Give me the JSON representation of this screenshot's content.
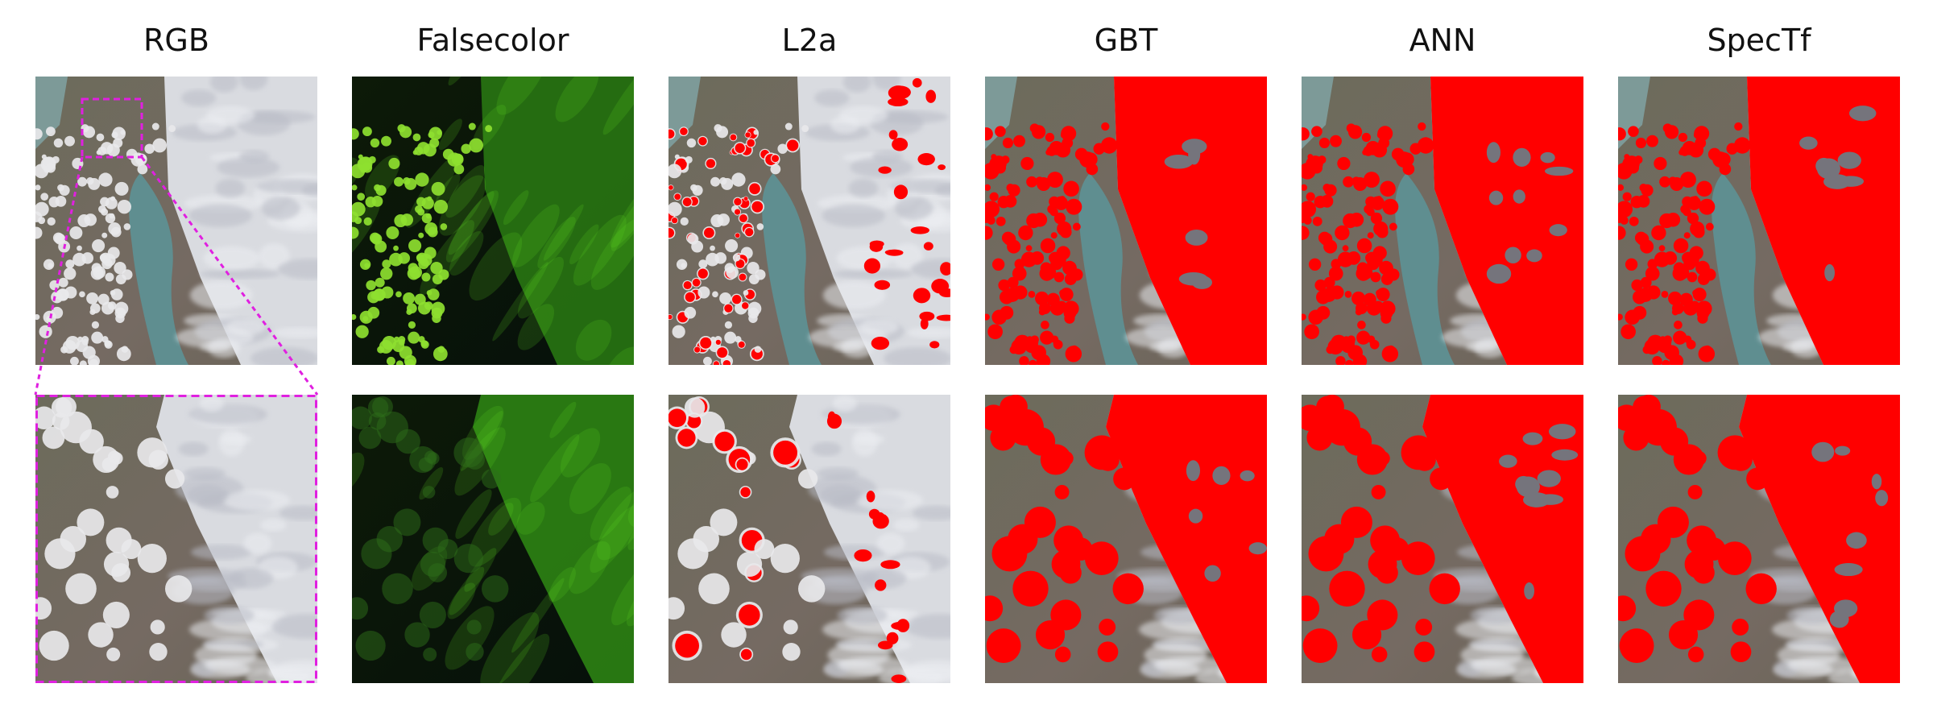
{
  "columns": [
    {
      "key": "rgb",
      "title": "RGB"
    },
    {
      "key": "falsecolor",
      "title": "Falsecolor"
    },
    {
      "key": "l2a",
      "title": "L2a"
    },
    {
      "key": "gbt",
      "title": "GBT"
    },
    {
      "key": "ann",
      "title": "ANN"
    },
    {
      "key": "spectf",
      "title": "SpecTf"
    }
  ],
  "rows": [
    "full-scene",
    "zoomed-inset"
  ],
  "colors": {
    "cloud_mask": "#ff0000",
    "inset_box": "#e020e0",
    "land": "#6f6a5a",
    "water": "#5f8e90",
    "cloud": "#d9dbe0",
    "falsecolor_bright": "#5ed820",
    "falsecolor_dark": "#0a1406"
  }
}
